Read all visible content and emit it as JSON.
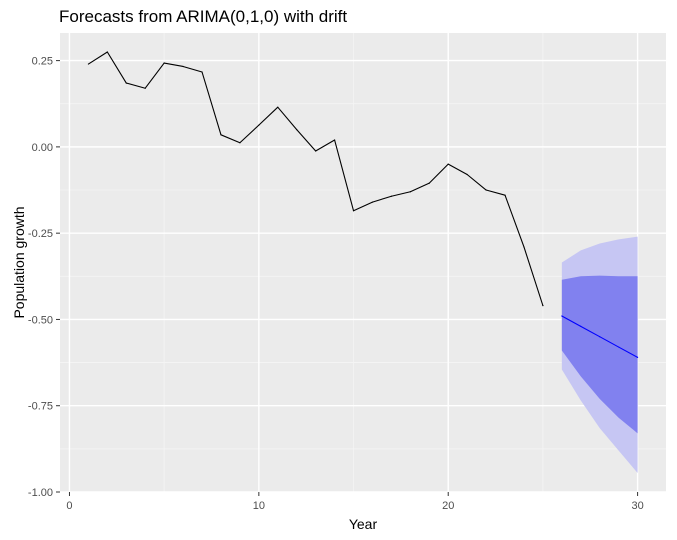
{
  "chart_data": {
    "type": "line",
    "title": "Forecasts from ARIMA(0,1,0) with drift",
    "xlabel": "Year",
    "ylabel": "Population growth",
    "xlim": [
      -0.5,
      31.5
    ],
    "ylim": [
      -1.0,
      0.33
    ],
    "x_ticks": [
      0,
      10,
      20,
      30
    ],
    "x_tick_labels": [
      "0",
      "10",
      "20",
      "30"
    ],
    "y_ticks": [
      0.25,
      0.0,
      -0.25,
      -0.5,
      -0.75,
      -1.0
    ],
    "y_tick_labels": [
      "0.25",
      "0.00",
      "-0.25",
      "-0.50",
      "-0.75",
      "-1.00"
    ],
    "grid": true,
    "series": [
      {
        "role": "observed",
        "color": "#000000",
        "x": [
          1,
          2,
          3,
          4,
          5,
          6,
          7,
          8,
          9,
          10,
          11,
          12,
          13,
          14,
          15,
          16,
          17,
          18,
          19,
          20,
          21,
          22,
          23,
          24,
          25
        ],
        "values": [
          0.24,
          0.275,
          0.185,
          0.17,
          0.243,
          0.233,
          0.217,
          0.035,
          0.012,
          0.063,
          0.115,
          0.05,
          -0.012,
          0.02,
          -0.185,
          -0.16,
          -0.143,
          -0.13,
          -0.105,
          -0.05,
          -0.08,
          -0.125,
          -0.14,
          -0.29,
          -0.46
        ]
      },
      {
        "role": "forecast",
        "color": "#0000ff",
        "x": [
          26,
          27,
          28,
          29,
          30
        ],
        "values": [
          -0.49,
          -0.52,
          -0.55,
          -0.58,
          -0.61
        ]
      }
    ],
    "intervals": [
      {
        "role": "95% interval",
        "color": "#c6c6f3",
        "x": [
          26,
          27,
          28,
          29,
          30
        ],
        "lower": [
          -0.645,
          -0.735,
          -0.815,
          -0.88,
          -0.945
        ],
        "upper": [
          -0.335,
          -0.3,
          -0.28,
          -0.268,
          -0.26
        ]
      },
      {
        "role": "80% interval",
        "color": "#8181ef",
        "x": [
          26,
          27,
          28,
          29,
          30
        ],
        "lower": [
          -0.59,
          -0.665,
          -0.73,
          -0.785,
          -0.83
        ],
        "upper": [
          -0.385,
          -0.375,
          -0.373,
          -0.375,
          -0.375
        ]
      }
    ]
  }
}
